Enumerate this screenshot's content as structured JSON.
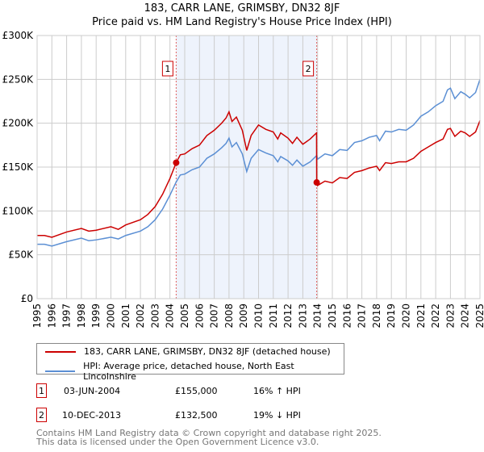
{
  "title": "183, CARR LANE, GRIMSBY, DN32 8JF",
  "subtitle": "Price paid vs. HM Land Registry's House Price Index (HPI)",
  "chart_data": {
    "type": "line",
    "ylim": [
      0,
      300000
    ],
    "xlim": [
      1995,
      2025
    ],
    "yticks": [
      0,
      50000,
      100000,
      150000,
      200000,
      250000,
      300000
    ],
    "ytick_labels": [
      "£0",
      "£50K",
      "£100K",
      "£150K",
      "£200K",
      "£250K",
      "£300K"
    ],
    "xticks": [
      "1995",
      "1996",
      "1997",
      "1998",
      "1999",
      "2000",
      "2001",
      "2002",
      "2003",
      "2004",
      "2005",
      "2006",
      "2007",
      "2008",
      "2009",
      "2010",
      "2011",
      "2012",
      "2013",
      "2014",
      "2015",
      "2016",
      "2017",
      "2018",
      "2019",
      "2020",
      "2021",
      "2022",
      "2023",
      "2024",
      "2025"
    ],
    "grid": true,
    "x": [
      1995,
      1995.5,
      1996,
      1997,
      1998,
      1998.5,
      1999,
      2000,
      2000.5,
      2001,
      2002,
      2002.5,
      2003,
      2003.5,
      2004,
      2004.42,
      2004.7,
      2005,
      2005.5,
      2006,
      2006.5,
      2007,
      2007.5,
      2007.8,
      2008,
      2008.2,
      2008.5,
      2008.9,
      2009.2,
      2009.5,
      2010,
      2010.5,
      2011,
      2011.3,
      2011.5,
      2012,
      2012.3,
      2012.6,
      2013,
      2013.5,
      2013.93,
      2013.94,
      2014,
      2014.5,
      2015,
      2015.5,
      2016,
      2016.5,
      2017,
      2017.5,
      2018,
      2018.2,
      2018.6,
      2019,
      2019.5,
      2020,
      2020.5,
      2021,
      2021.5,
      2022,
      2022.5,
      2022.8,
      2023,
      2023.3,
      2023.7,
      2024,
      2024.3,
      2024.7,
      2025
    ],
    "series": [
      {
        "name": "183, CARR LANE, GRIMSBY, DN32 8JF (detached house)",
        "color": "#cc0000",
        "values_k": [
          72,
          72,
          70,
          76,
          80,
          77,
          78,
          82,
          79,
          84,
          90,
          96,
          105,
          119,
          137,
          155,
          164,
          165,
          171,
          175,
          186,
          192,
          200,
          206,
          213,
          202,
          207,
          192,
          169,
          186,
          198,
          193,
          190,
          182,
          189,
          183,
          177,
          184,
          176,
          182,
          189,
          132.5,
          129,
          134,
          132,
          138,
          137,
          144,
          146,
          149,
          151,
          146,
          155,
          154,
          156,
          156,
          160,
          168,
          173,
          178,
          182,
          193,
          194,
          185,
          191,
          189,
          185,
          190,
          203
        ]
      },
      {
        "name": "HPI: Average price, detached house, North East Lincolnshire",
        "color": "#5b8fd4",
        "values_k": [
          62,
          62,
          60,
          65,
          69,
          66,
          67,
          70,
          68,
          72,
          77,
          82,
          90,
          102,
          118,
          133,
          141,
          142,
          147,
          150,
          160,
          165,
          172,
          177,
          183,
          173,
          178,
          165,
          145,
          160,
          170,
          166,
          163,
          156,
          162,
          157,
          152,
          158,
          151,
          156,
          163,
          163,
          159,
          165,
          163,
          170,
          169,
          178,
          180,
          184,
          186,
          180,
          191,
          190,
          193,
          192,
          198,
          208,
          213,
          220,
          225,
          238,
          240,
          228,
          236,
          233,
          229,
          235,
          250
        ]
      }
    ],
    "sales": [
      {
        "label": "1",
        "x": 2004.42,
        "value_k": 155
      },
      {
        "label": "2",
        "x": 2013.94,
        "value_k": 132.5
      }
    ],
    "shade_color": "#eef3fc"
  },
  "legend": [
    "183, CARR LANE, GRIMSBY, DN32 8JF (detached house)",
    "HPI: Average price, detached house, North East Lincolnshire"
  ],
  "transactions": [
    {
      "num": "1",
      "date": "03-JUN-2004",
      "price": "£155,000",
      "hpi": "16% ↑ HPI"
    },
    {
      "num": "2",
      "date": "10-DEC-2013",
      "price": "£132,500",
      "hpi": "19% ↓ HPI"
    }
  ],
  "footer": [
    "Contains HM Land Registry data © Crown copyright and database right 2025.",
    "This data is licensed under the Open Government Licence v3.0."
  ]
}
